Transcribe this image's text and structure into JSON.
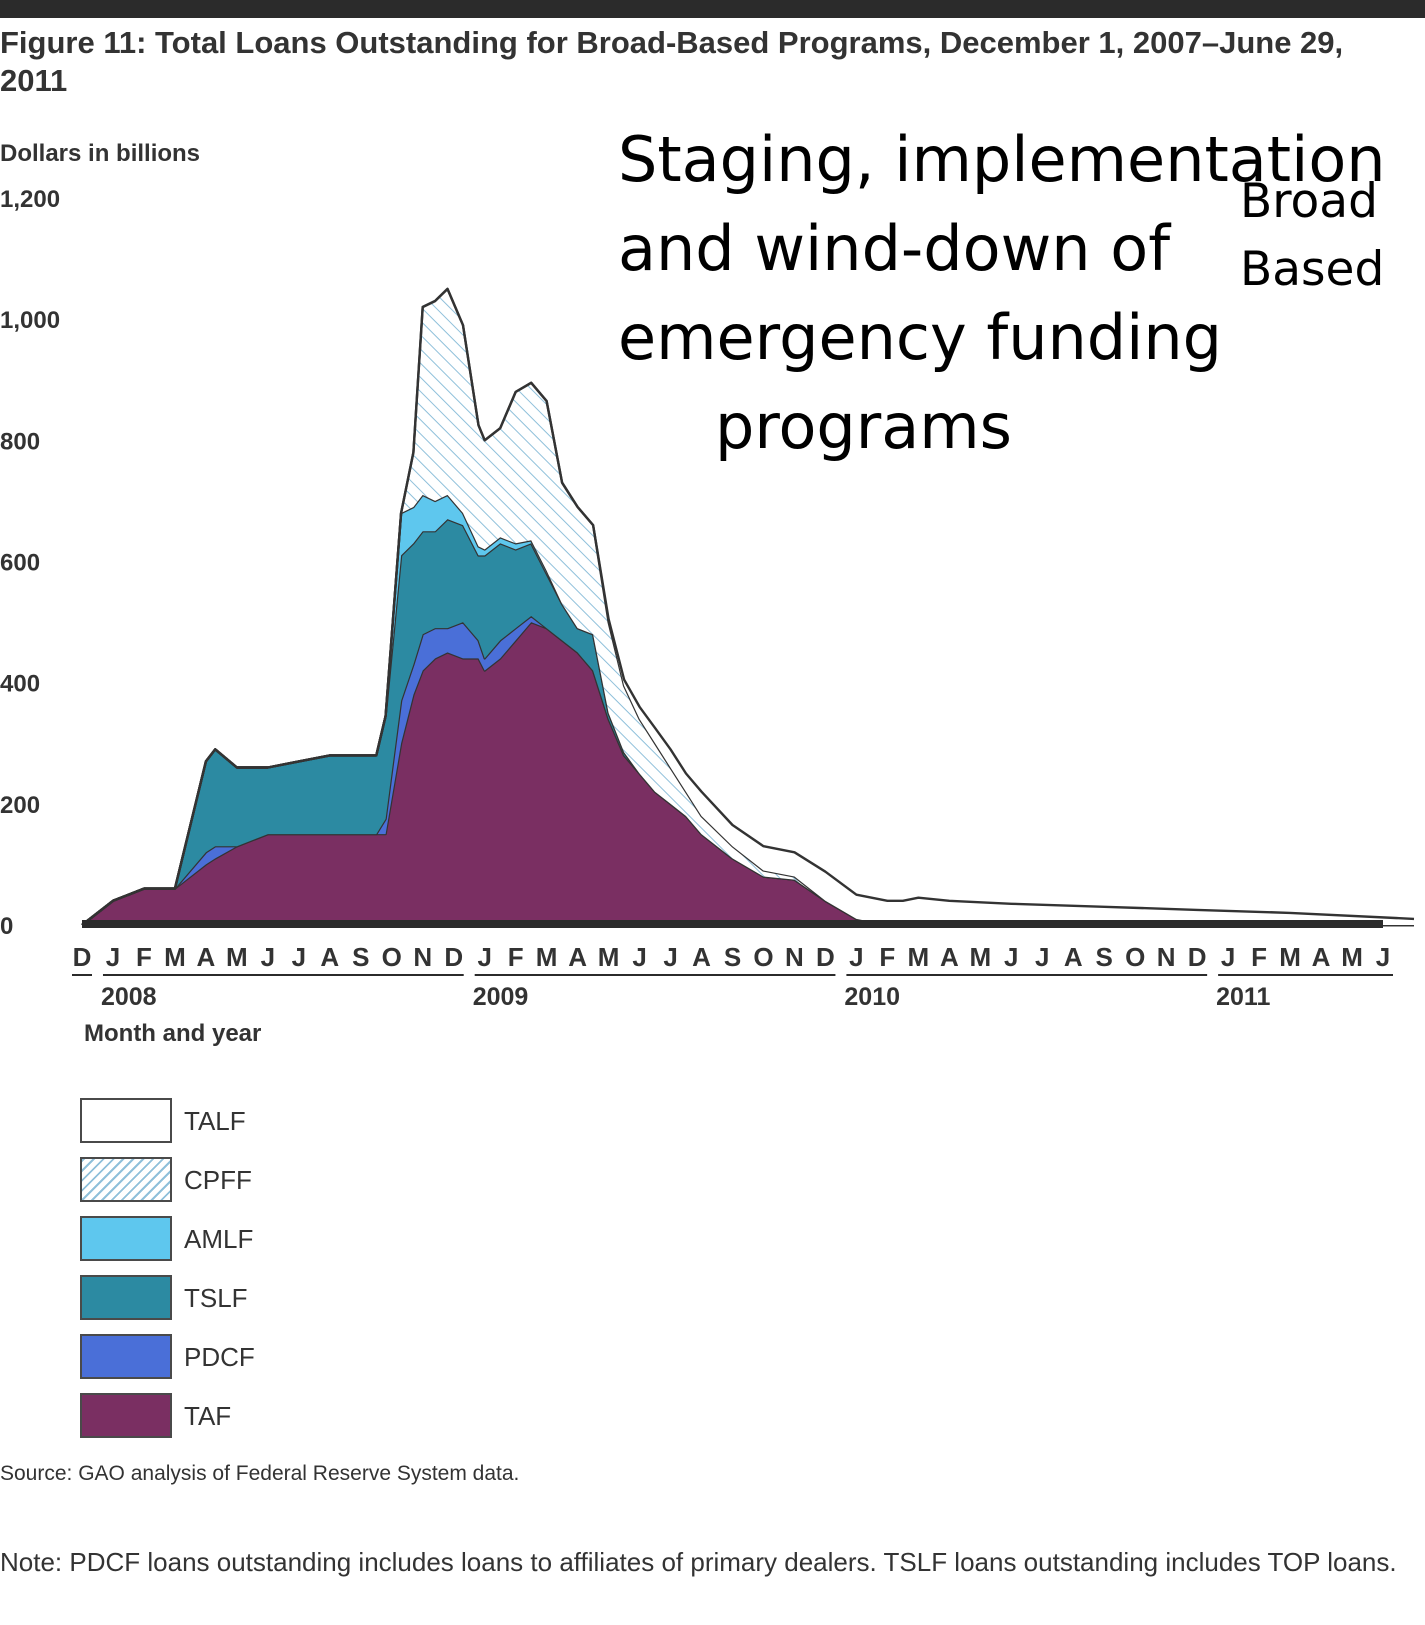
{
  "figure": {
    "title": "Figure 11: Total Loans Outstanding for Broad-Based Programs, December 1, 2007–June 29, 2011",
    "y_unit_label": "Dollars in billions",
    "x_title": "Month and year",
    "source": "Source: GAO analysis of Federal Reserve System data.",
    "note": "Note: PDCF loans outstanding includes loans to affiliates of primary dealers. TSLF loans outstanding includes TOP loans."
  },
  "overlay": {
    "lines": [
      "Staging, implementation",
      "and wind-down of",
      "emergency funding",
      "programs"
    ],
    "side_lines": [
      "Broad",
      "Based"
    ]
  },
  "legend": [
    {
      "label": "TALF",
      "swatch": "white"
    },
    {
      "label": "CPFF",
      "swatch": "hatch"
    },
    {
      "label": "AMLF",
      "swatch": "#5ec7ee"
    },
    {
      "label": "TSLF",
      "swatch": "#2c8aa2"
    },
    {
      "label": "PDCF",
      "swatch": "#4a6fd8"
    },
    {
      "label": "TAF",
      "swatch": "#7a2f62"
    }
  ],
  "colors": {
    "TAF": "#7a2f62",
    "PDCF": "#4a6fd8",
    "TSLF": "#2c8aa2",
    "AMLF": "#5ec7ee",
    "CPFF_hatch": "#8fc0da",
    "TALF": "#ffffff",
    "outline": "#333333"
  },
  "chart_data": {
    "type": "area",
    "stacked": true,
    "title": "Total Loans Outstanding for Broad-Based Programs, December 1, 2007–June 29, 2011",
    "ylabel": "Dollars in billions",
    "xlabel": "Month and year",
    "ylim": [
      0,
      1200
    ],
    "yticks": [
      0,
      200,
      400,
      600,
      800,
      1000,
      1200
    ],
    "ytick_labels": [
      "0",
      "200",
      "400",
      "600",
      "800",
      "1,000",
      "1,200"
    ],
    "x_month_labels": [
      "D",
      "J",
      "F",
      "M",
      "A",
      "M",
      "J",
      "J",
      "A",
      "S",
      "O",
      "N",
      "D",
      "J",
      "F",
      "M",
      "A",
      "M",
      "J",
      "J",
      "A",
      "S",
      "O",
      "N",
      "D",
      "J",
      "F",
      "M",
      "A",
      "M",
      "J",
      "J",
      "A",
      "S",
      "O",
      "N",
      "D",
      "J",
      "F",
      "M",
      "A",
      "M",
      "J"
    ],
    "year_labels": [
      {
        "label": "2008",
        "start_month": 1
      },
      {
        "label": "2009",
        "start_month": 13
      },
      {
        "label": "2010",
        "start_month": 25
      },
      {
        "label": "2011",
        "start_month": 37
      }
    ],
    "x_unit": "months since December 1, 2007",
    "x": [
      0,
      1,
      2,
      3,
      4,
      4.3,
      5,
      6,
      7,
      8,
      9,
      9.5,
      9.8,
      10.3,
      10.7,
      11,
      11.4,
      11.8,
      12.3,
      12.8,
      13,
      13.5,
      14,
      14.5,
      15,
      15.5,
      16,
      16.5,
      17,
      17.5,
      18,
      18.5,
      19,
      19.5,
      20,
      21,
      22,
      23,
      24,
      25,
      26,
      26.5,
      27,
      28,
      30,
      33,
      36,
      39,
      43
    ],
    "series": [
      {
        "name": "TAF",
        "values": [
          0,
          40,
          60,
          60,
          100,
          110,
          130,
          150,
          150,
          150,
          150,
          150,
          150,
          300,
          380,
          420,
          440,
          450,
          440,
          440,
          420,
          440,
          470,
          500,
          490,
          470,
          450,
          420,
          340,
          280,
          250,
          220,
          200,
          180,
          150,
          110,
          80,
          75,
          40,
          10,
          0,
          0,
          0,
          0,
          0,
          0,
          0,
          0,
          0
        ]
      },
      {
        "name": "PDCF",
        "values": [
          0,
          0,
          0,
          0,
          20,
          20,
          0,
          0,
          0,
          0,
          0,
          0,
          25,
          70,
          50,
          60,
          50,
          40,
          60,
          30,
          20,
          30,
          20,
          10,
          0,
          0,
          0,
          0,
          0,
          0,
          0,
          0,
          0,
          0,
          0,
          0,
          0,
          0,
          0,
          0,
          0,
          0,
          0,
          0,
          0,
          0,
          0,
          0,
          0
        ]
      },
      {
        "name": "TSLF",
        "values": [
          0,
          0,
          0,
          0,
          150,
          160,
          130,
          110,
          120,
          130,
          130,
          130,
          170,
          240,
          200,
          170,
          160,
          180,
          160,
          140,
          170,
          160,
          130,
          120,
          90,
          60,
          40,
          60,
          10,
          5,
          0,
          0,
          0,
          0,
          0,
          0,
          0,
          0,
          0,
          0,
          0,
          0,
          0,
          0,
          0,
          0,
          0,
          0,
          0
        ]
      },
      {
        "name": "AMLF",
        "values": [
          0,
          0,
          0,
          0,
          0,
          0,
          0,
          0,
          0,
          0,
          0,
          0,
          0,
          70,
          60,
          60,
          50,
          40,
          20,
          15,
          10,
          10,
          10,
          5,
          5,
          0,
          0,
          0,
          0,
          0,
          0,
          0,
          0,
          0,
          0,
          0,
          0,
          0,
          0,
          0,
          0,
          0,
          0,
          0,
          0,
          0,
          0,
          0,
          0
        ]
      },
      {
        "name": "CPFF",
        "values": [
          0,
          0,
          0,
          0,
          0,
          0,
          0,
          0,
          0,
          0,
          0,
          0,
          0,
          0,
          90,
          310,
          330,
          340,
          310,
          200,
          180,
          180,
          250,
          260,
          280,
          200,
          200,
          180,
          150,
          110,
          90,
          80,
          60,
          40,
          30,
          20,
          10,
          5,
          0,
          0,
          0,
          0,
          0,
          0,
          0,
          0,
          0,
          0,
          0
        ]
      },
      {
        "name": "TALF",
        "values": [
          0,
          0,
          0,
          0,
          0,
          0,
          0,
          0,
          0,
          0,
          0,
          0,
          0,
          0,
          0,
          0,
          0,
          0,
          0,
          0,
          0,
          0,
          0,
          0,
          0,
          0,
          0,
          0,
          5,
          10,
          20,
          25,
          30,
          30,
          40,
          35,
          40,
          40,
          48,
          40,
          40,
          40,
          45,
          40,
          35,
          30,
          25,
          20,
          10
        ]
      }
    ]
  }
}
